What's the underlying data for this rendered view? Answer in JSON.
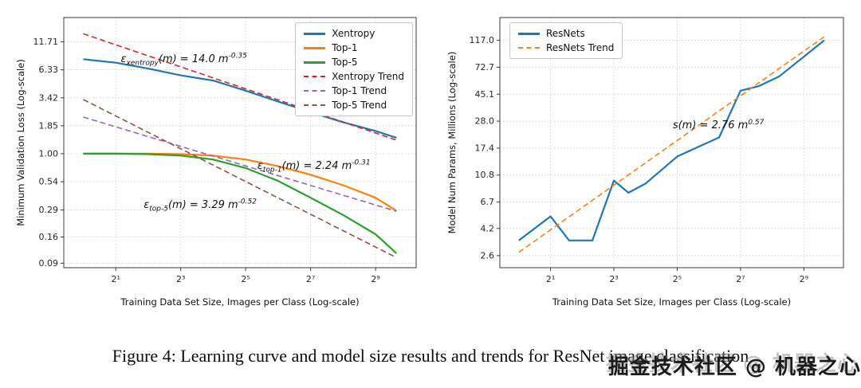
{
  "caption": {
    "text": "Figure 4: Learning curve and model size results and trends for ResNet image classification"
  },
  "watermark": {
    "text": "掘金技术社区 @ 机器之心"
  },
  "chart_data": [
    {
      "type": "line",
      "title": "",
      "xlabel": "Training Data Set Size, Images per Class (Log-scale)",
      "ylabel": "Minimum Validation Loss (Log-scale)",
      "x_scale": "log2",
      "y_scale": "log",
      "x_exp_range": [
        -0.6,
        10.25
      ],
      "y_range": [
        0.0815,
        20
      ],
      "grid": true,
      "legend_position": "top-right",
      "x_ticks": [
        {
          "exp": 1,
          "label": "2¹"
        },
        {
          "exp": 3,
          "label": "2³"
        },
        {
          "exp": 5,
          "label": "2⁵"
        },
        {
          "exp": 7,
          "label": "2⁷"
        },
        {
          "exp": 9,
          "label": "2⁹"
        }
      ],
      "y_ticks": [
        {
          "value": 11.71,
          "label": "11.71"
        },
        {
          "value": 6.33,
          "label": "6.33"
        },
        {
          "value": 3.42,
          "label": "3.42"
        },
        {
          "value": 1.85,
          "label": "1.85"
        },
        {
          "value": 1.0,
          "label": "1.00"
        },
        {
          "value": 0.54,
          "label": "0.54"
        },
        {
          "value": 0.29,
          "label": "0.29"
        },
        {
          "value": 0.16,
          "label": "0.16"
        },
        {
          "value": 0.09,
          "label": "0.09"
        }
      ],
      "x": [
        1,
        2,
        4,
        8,
        16,
        32,
        64,
        128,
        256,
        512,
        800
      ],
      "series": [
        {
          "name": "Xentropy",
          "color": "#1f77b4",
          "style": "solid",
          "values": [
            8.0,
            7.4,
            6.5,
            5.6,
            5.0,
            4.0,
            3.15,
            2.5,
            2.0,
            1.65,
            1.42
          ]
        },
        {
          "name": "Top-1",
          "color": "#ff7f0e",
          "style": "solid",
          "values": [
            1.0,
            1.0,
            1.0,
            0.99,
            0.96,
            0.88,
            0.76,
            0.63,
            0.5,
            0.38,
            0.285
          ]
        },
        {
          "name": "Top-5",
          "color": "#2ca02c",
          "style": "solid",
          "values": [
            1.0,
            1.0,
            0.99,
            0.96,
            0.88,
            0.73,
            0.55,
            0.38,
            0.26,
            0.17,
            0.112
          ]
        },
        {
          "name": "Xentropy Trend",
          "color": "#d62728",
          "style": "dashed",
          "trend": {
            "coef": 14.0,
            "power": -0.35
          }
        },
        {
          "name": "Top-1 Trend",
          "color": "#9467bd",
          "style": "dashed",
          "trend": {
            "coef": 2.24,
            "power": -0.31
          }
        },
        {
          "name": "Top-5 Trend",
          "color": "#8c564b",
          "style": "dashed",
          "trend": {
            "coef": 3.29,
            "power": -0.52
          }
        }
      ],
      "annotations": [
        {
          "lead": "ε",
          "sub": "xentropy",
          "mid": "(m) = 14.0 m",
          "sup": "-0.35",
          "x_exp": 3.1,
          "y_val": 7.9
        },
        {
          "lead": "ε",
          "sub": "top-1",
          "mid": "(m) = 2.24 m",
          "sup": "-0.31",
          "x_exp": 7.1,
          "y_val": 0.75
        },
        {
          "lead": "ε",
          "sub": "top-5",
          "mid": "(m) = 3.29 m",
          "sup": "-0.52",
          "x_exp": 3.6,
          "y_val": 0.32
        }
      ]
    },
    {
      "type": "line",
      "title": "",
      "xlabel": "Training Data Set Size, Images per Class (Log-scale)",
      "ylabel": "Model Num Params, Millions (Log-scale)",
      "x_scale": "log2",
      "y_scale": "log",
      "x_exp_range": [
        -0.6,
        10.25
      ],
      "y_range": [
        2.1,
        175
      ],
      "grid": true,
      "legend_position": "top-left",
      "x_ticks": [
        {
          "exp": 1,
          "label": "2¹"
        },
        {
          "exp": 3,
          "label": "2³"
        },
        {
          "exp": 5,
          "label": "2⁵"
        },
        {
          "exp": 7,
          "label": "2⁷"
        },
        {
          "exp": 9,
          "label": "2⁹"
        }
      ],
      "y_ticks": [
        {
          "value": 117.0,
          "label": "117.0"
        },
        {
          "value": 72.7,
          "label": "72.7"
        },
        {
          "value": 45.1,
          "label": "45.1"
        },
        {
          "value": 28.0,
          "label": "28.0"
        },
        {
          "value": 17.4,
          "label": "17.4"
        },
        {
          "value": 10.8,
          "label": "10.8"
        },
        {
          "value": 6.7,
          "label": "6.7"
        },
        {
          "value": 4.2,
          "label": "4.2"
        },
        {
          "value": 2.6,
          "label": "2.6"
        }
      ],
      "x": [
        1,
        2,
        3,
        5,
        8,
        11,
        16,
        32,
        80,
        128,
        190,
        300,
        800
      ],
      "series": [
        {
          "name": "ResNets",
          "color": "#1f77b4",
          "style": "solid",
          "x": [
            1,
            2,
            3,
            5,
            8,
            11,
            16,
            32,
            80,
            128,
            190,
            300,
            800
          ],
          "values": [
            3.4,
            5.2,
            3.4,
            3.4,
            9.8,
            7.9,
            9.3,
            15,
            21,
            48,
            52,
            62,
            117
          ]
        },
        {
          "name": "ResNets Trend",
          "color": "#ff7f0e",
          "style": "dashed",
          "trend": {
            "coef": 2.76,
            "power": 0.57
          }
        }
      ],
      "annotations": [
        {
          "lead": "s",
          "sub": "",
          "mid": "(m) = 2.76 m",
          "sup": "0.57",
          "x_exp": 6.3,
          "y_val": 26
        }
      ]
    }
  ]
}
